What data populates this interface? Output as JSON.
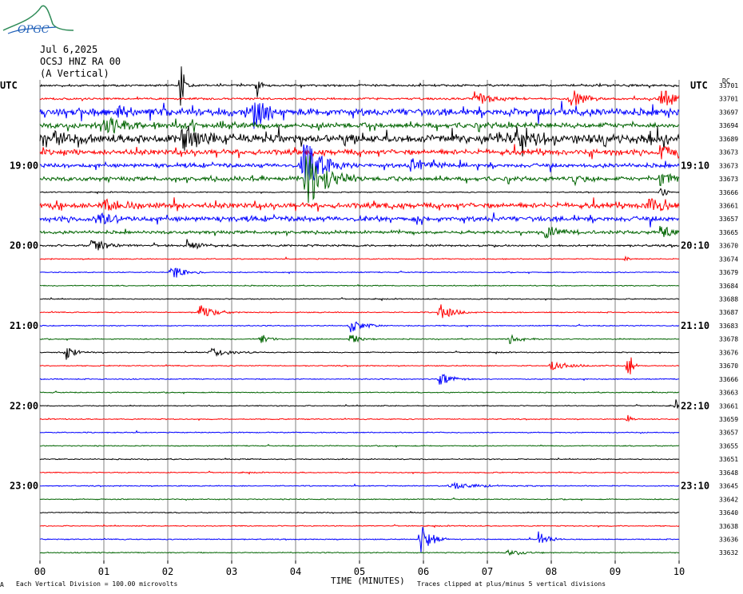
{
  "header": {
    "logo_text": "OPGC",
    "date": "Jul 6,2025",
    "station": "OCSJ HNZ RA 00",
    "component": "(A Vertical)"
  },
  "utc_left": "UTC",
  "utc_right": "UTC",
  "dc_label": "DC",
  "footer": {
    "division": "Each Vertical Division =  100.00 microvolts",
    "clipping": "Traces clipped at plus/minus 5 vertical divisions",
    "xaxis_title": "TIME (MINUTES)",
    "corner_mark": "A"
  },
  "colors": {
    "black": "#000000",
    "red": "#ff0000",
    "blue": "#0000ff",
    "green": "#006400",
    "grid": "#808080"
  },
  "chart_data": {
    "type": "line",
    "x_ticks": [
      "00",
      "01",
      "02",
      "03",
      "04",
      "05",
      "06",
      "07",
      "08",
      "09",
      "10"
    ],
    "xlabel": "TIME (MINUTES)",
    "xlim": [
      0,
      10
    ],
    "row_interval_minutes": 10,
    "left_time_labels": [
      {
        "row": 6,
        "label": "19:00"
      },
      {
        "row": 12,
        "label": "20:00"
      },
      {
        "row": 18,
        "label": "21:00"
      },
      {
        "row": 24,
        "label": "22:00"
      },
      {
        "row": 30,
        "label": "23:00"
      }
    ],
    "right_time_labels": [
      {
        "row": 6,
        "label": "19:10"
      },
      {
        "row": 12,
        "label": "20:10"
      },
      {
        "row": 18,
        "label": "21:10"
      },
      {
        "row": 24,
        "label": "22:10"
      },
      {
        "row": 30,
        "label": "23:10"
      }
    ],
    "dc_offsets": [
      "33701",
      "33701",
      "33697",
      "33694",
      "33689",
      "33673",
      "33673",
      "33673",
      "33666",
      "33661",
      "33657",
      "33665",
      "33670",
      "33674",
      "33679",
      "33684",
      "33688",
      "33687",
      "33683",
      "33678",
      "33676",
      "33670",
      "33666",
      "33663",
      "33661",
      "33659",
      "33657",
      "33655",
      "33651",
      "33648",
      "33645",
      "33642",
      "33640",
      "33638",
      "33636",
      "33632"
    ],
    "trace_colors": [
      "black",
      "red",
      "blue",
      "green"
    ],
    "noise_level": [
      2,
      2,
      7,
      5,
      8,
      5,
      4,
      4,
      1,
      5,
      5,
      3,
      2,
      1,
      1,
      1,
      1,
      1,
      1,
      1,
      1,
      1,
      1,
      1,
      1,
      1,
      1,
      1,
      1,
      1,
      1,
      1,
      1,
      1,
      1,
      1
    ],
    "events": [
      {
        "row": 0,
        "t": 2.2,
        "amp": 40,
        "dur": 0.05
      },
      {
        "row": 0,
        "t": 3.4,
        "amp": 18,
        "dur": 0.05
      },
      {
        "row": 1,
        "t": 8.3,
        "amp": 14,
        "dur": 0.2
      },
      {
        "row": 1,
        "t": 6.8,
        "amp": 10,
        "dur": 0.3
      },
      {
        "row": 1,
        "t": 9.7,
        "amp": 14,
        "dur": 0.3
      },
      {
        "row": 2,
        "t": 3.35,
        "amp": 25,
        "dur": 0.15
      },
      {
        "row": 2,
        "t": 1.2,
        "amp": 8,
        "dur": 0.3
      },
      {
        "row": 3,
        "t": 1.0,
        "amp": 10,
        "dur": 0.5
      },
      {
        "row": 4,
        "t": 2.2,
        "amp": 16,
        "dur": 0.5
      },
      {
        "row": 4,
        "t": 7.4,
        "amp": 12,
        "dur": 0.5
      },
      {
        "row": 4,
        "t": 0.2,
        "amp": 10,
        "dur": 0.3
      },
      {
        "row": 5,
        "t": 9.7,
        "amp": 10,
        "dur": 0.3
      },
      {
        "row": 6,
        "t": 4.1,
        "amp": 35,
        "dur": 0.3
      },
      {
        "row": 6,
        "t": 5.8,
        "amp": 10,
        "dur": 0.3
      },
      {
        "row": 7,
        "t": 4.15,
        "amp": 40,
        "dur": 0.3
      },
      {
        "row": 7,
        "t": 8.3,
        "amp": 10,
        "dur": 0.2
      },
      {
        "row": 7,
        "t": 9.7,
        "amp": 12,
        "dur": 0.2
      },
      {
        "row": 8,
        "t": 9.7,
        "amp": 8,
        "dur": 0.1
      },
      {
        "row": 9,
        "t": 9.5,
        "amp": 12,
        "dur": 0.3
      },
      {
        "row": 9,
        "t": 1.0,
        "amp": 8,
        "dur": 0.3
      },
      {
        "row": 10,
        "t": 0.9,
        "amp": 10,
        "dur": 0.2
      },
      {
        "row": 11,
        "t": 7.9,
        "amp": 10,
        "dur": 0.3
      },
      {
        "row": 11,
        "t": 9.7,
        "amp": 8,
        "dur": 0.3
      },
      {
        "row": 12,
        "t": 2.3,
        "amp": 8,
        "dur": 0.2
      },
      {
        "row": 12,
        "t": 0.8,
        "amp": 8,
        "dur": 0.3
      },
      {
        "row": 13,
        "t": 9.15,
        "amp": 6,
        "dur": 0.05
      },
      {
        "row": 14,
        "t": 2.05,
        "amp": 10,
        "dur": 0.2
      },
      {
        "row": 17,
        "t": 2.5,
        "amp": 10,
        "dur": 0.2
      },
      {
        "row": 17,
        "t": 6.25,
        "amp": 12,
        "dur": 0.2
      },
      {
        "row": 18,
        "t": 4.85,
        "amp": 10,
        "dur": 0.2
      },
      {
        "row": 19,
        "t": 3.45,
        "amp": 8,
        "dur": 0.15
      },
      {
        "row": 19,
        "t": 4.85,
        "amp": 8,
        "dur": 0.15
      },
      {
        "row": 19,
        "t": 7.35,
        "amp": 6,
        "dur": 0.2
      },
      {
        "row": 20,
        "t": 0.4,
        "amp": 10,
        "dur": 0.15
      },
      {
        "row": 20,
        "t": 2.65,
        "amp": 6,
        "dur": 0.3
      },
      {
        "row": 21,
        "t": 9.2,
        "amp": 30,
        "dur": 0.05
      },
      {
        "row": 21,
        "t": 8.0,
        "amp": 6,
        "dur": 0.3
      },
      {
        "row": 22,
        "t": 6.25,
        "amp": 8,
        "dur": 0.2
      },
      {
        "row": 24,
        "t": 9.95,
        "amp": 8,
        "dur": 0.05
      },
      {
        "row": 25,
        "t": 9.2,
        "amp": 6,
        "dur": 0.05
      },
      {
        "row": 30,
        "t": 6.4,
        "amp": 4,
        "dur": 0.5
      },
      {
        "row": 34,
        "t": 5.95,
        "amp": 22,
        "dur": 0.15
      },
      {
        "row": 34,
        "t": 7.8,
        "amp": 10,
        "dur": 0.15
      },
      {
        "row": 35,
        "t": 7.3,
        "amp": 4,
        "dur": 0.3
      }
    ]
  }
}
